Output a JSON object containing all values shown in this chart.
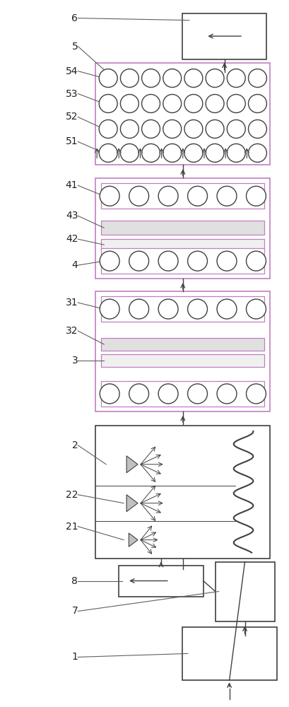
{
  "fig_width": 4.09,
  "fig_height": 10.0,
  "dpi": 100,
  "bg_color": "#ffffff",
  "purple_edge": "#c080c0",
  "dark_line": "#404040",
  "gray_fill": "#e0e0e0",
  "light_gray": "#f0f0f0",
  "label_fs": 10
}
